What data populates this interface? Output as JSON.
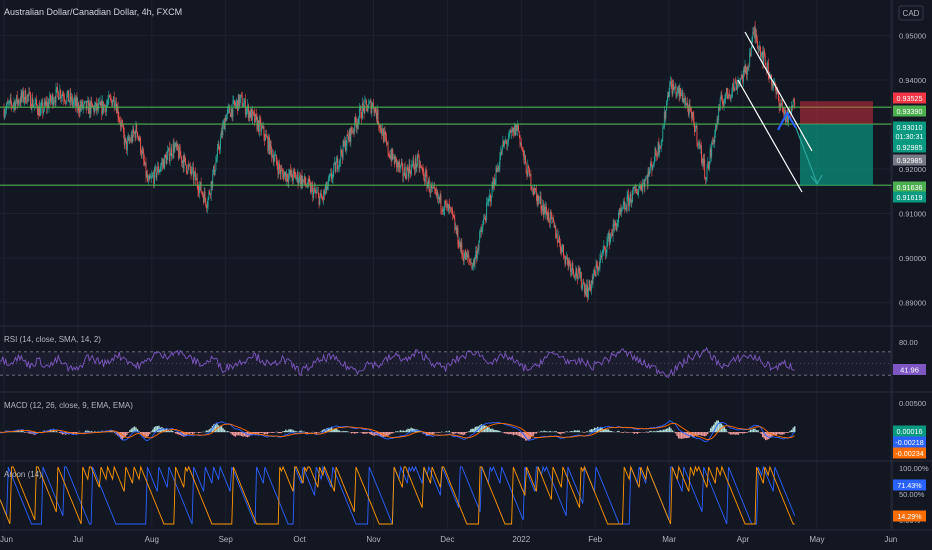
{
  "header": {
    "symbol_title": "Australian Dollar/Canadian Dollar, 4h, FXCM",
    "currency_badge": "CAD"
  },
  "colors": {
    "background": "#131722",
    "grid": "#1e222d",
    "up_candle": "#26a69a",
    "down_candle": "#ef5350",
    "support_line": "#4caf50",
    "trend_line": "#ffffff",
    "rsi_line": "#7e57c2",
    "macd_line": "#2962ff",
    "signal_line": "#ff6d00",
    "aroon_up": "#ff9800",
    "aroon_down": "#2962ff",
    "stop_zone": "#f23645",
    "target_zone": "#089981"
  },
  "chart_data": [
    {
      "type": "candlestick",
      "title": "Australian Dollar/Canadian Dollar, 4h, FXCM",
      "x_tick_labels": [
        "Jun",
        "Jul",
        "Aug",
        "Sep",
        "Oct",
        "Nov",
        "Dec",
        "2022",
        "Feb",
        "Mar",
        "Apr",
        "May",
        "Jun"
      ],
      "y_tick_labels": [
        "0.95000",
        "0.94000",
        "0.93000",
        "0.92000",
        "0.91000",
        "0.90000",
        "0.89000"
      ],
      "ylim": [
        0.8865,
        0.9535
      ],
      "grid": true,
      "close_path": [
        [
          0,
          0.9335
        ],
        [
          0.3,
          0.9365
        ],
        [
          0.5,
          0.933
        ],
        [
          0.75,
          0.9375
        ],
        [
          1.0,
          0.934
        ],
        [
          1.3,
          0.9335
        ],
        [
          1.5,
          0.936
        ],
        [
          1.65,
          0.925
        ],
        [
          1.8,
          0.929
        ],
        [
          1.95,
          0.9165
        ],
        [
          2.3,
          0.925
        ],
        [
          2.6,
          0.9175
        ],
        [
          2.75,
          0.9125
        ],
        [
          3.0,
          0.932
        ],
        [
          3.2,
          0.9355
        ],
        [
          3.5,
          0.9285
        ],
        [
          3.75,
          0.919
        ],
        [
          4.0,
          0.918
        ],
        [
          4.3,
          0.913
        ],
        [
          4.6,
          0.925
        ],
        [
          4.85,
          0.9335
        ],
        [
          5.0,
          0.9345
        ],
        [
          5.2,
          0.924
        ],
        [
          5.4,
          0.919
        ],
        [
          5.6,
          0.9215
        ],
        [
          5.8,
          0.9145
        ],
        [
          6.05,
          0.91
        ],
        [
          6.2,
          0.901
        ],
        [
          6.35,
          0.8985
        ],
        [
          6.55,
          0.912
        ],
        [
          6.75,
          0.925
        ],
        [
          6.95,
          0.9295
        ],
        [
          7.05,
          0.921
        ],
        [
          7.2,
          0.914
        ],
        [
          7.4,
          0.9085
        ],
        [
          7.6,
          0.9
        ],
        [
          7.75,
          0.8965
        ],
        [
          7.9,
          0.8925
        ],
        [
          8.2,
          0.905
        ],
        [
          8.45,
          0.913
        ],
        [
          8.7,
          0.918
        ],
        [
          8.9,
          0.927
        ],
        [
          9.0,
          0.939
        ],
        [
          9.2,
          0.936
        ],
        [
          9.35,
          0.9295
        ],
        [
          9.5,
          0.9185
        ],
        [
          9.7,
          0.935
        ],
        [
          9.9,
          0.939
        ],
        [
          10.05,
          0.942
        ],
        [
          10.15,
          0.951
        ],
        [
          10.3,
          0.944
        ],
        [
          10.45,
          0.937
        ],
        [
          10.6,
          0.931
        ],
        [
          10.7,
          0.935
        ]
      ],
      "horizontal_levels": [
        0.9339,
        0.9301,
        0.91636
      ],
      "price_labels": [
        {
          "text": "0.93525",
          "color": "#f23645"
        },
        {
          "text": "0.93390",
          "color": "#4caf50"
        },
        {
          "text": "0.93010",
          "color": "#089981"
        },
        {
          "text": "01:30:31",
          "color": "#089981"
        },
        {
          "text": "0.92985",
          "color": "#089981"
        },
        {
          "text": "0.92985",
          "color": "#787b86"
        },
        {
          "text": "0.91636",
          "color": "#4caf50"
        },
        {
          "text": "0.91619",
          "color": "#089981"
        }
      ],
      "position": {
        "stop": 0.93525,
        "entry": 0.9301,
        "target": 0.91636
      }
    },
    {
      "type": "line",
      "title": "RSI (14, close, SMA, 14, 2)",
      "y_tick_labels": [
        "80.00"
      ],
      "bands": [
        70,
        30
      ],
      "last_value": "41.96",
      "last_value_color": "#7e57c2",
      "series": [
        {
          "values": [
            58,
            52,
            61,
            47,
            55,
            44,
            57,
            42,
            38,
            62,
            55,
            49,
            66,
            58,
            45,
            51,
            68,
            61,
            72,
            64,
            55,
            48,
            60,
            41,
            47,
            53,
            66,
            57,
            44,
            59,
            49,
            36,
            45,
            55,
            62,
            52,
            43,
            38,
            51,
            46,
            58,
            63,
            55,
            69,
            60,
            47,
            42,
            56,
            64,
            71,
            59,
            50,
            65,
            54,
            43,
            40,
            57,
            67,
            62,
            48,
            55,
            44,
            53,
            60,
            72,
            65,
            53,
            46,
            38,
            32,
            44,
            58,
            66,
            71,
            52,
            44,
            58,
            63,
            60,
            48,
            42,
            50,
            41.96
          ]
        }
      ]
    },
    {
      "type": "line",
      "title": "MACD (12, 26, close, 9, EMA, EMA)",
      "y_tick_labels": [
        "0.00500"
      ],
      "last_values": [
        {
          "text": "0.00016",
          "color": "#089981"
        },
        {
          "text": "-0.00218",
          "color": "#2962ff"
        },
        {
          "text": "-0.00234",
          "color": "#ff6d00"
        }
      ]
    },
    {
      "type": "line",
      "title": "Aroon (14)",
      "y_tick_labels": [
        "100.00%",
        "50.00%",
        "0.00%"
      ],
      "last_values": [
        {
          "text": "71.43%",
          "color": "#2962ff"
        },
        {
          "text": "14.29%",
          "color": "#ff6d00"
        }
      ]
    }
  ]
}
